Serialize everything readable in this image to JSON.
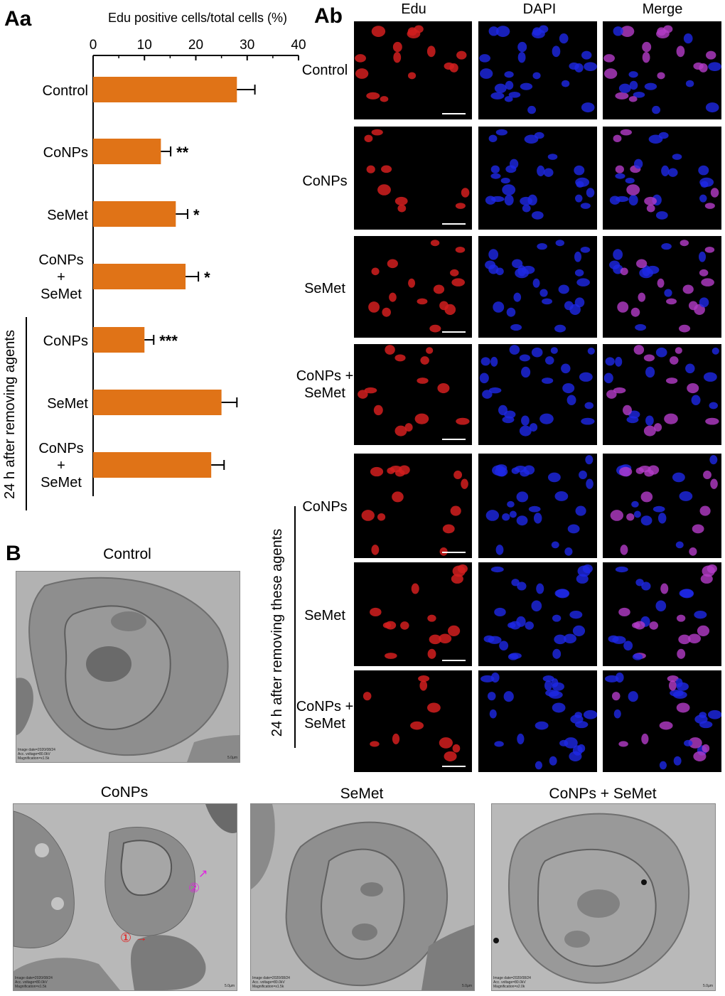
{
  "panel_labels": {
    "aa": "Aa",
    "ab": "Ab",
    "b": "B"
  },
  "chart_data": {
    "type": "bar",
    "orientation": "horizontal",
    "title": "Edu positive cells/total cells (%)",
    "xlim": [
      0,
      40
    ],
    "xticks": [
      "0",
      "10",
      "20",
      "30",
      "40"
    ],
    "categories": [
      "Control",
      "CoNPs",
      "SeMet",
      "CoNPs + SeMet",
      "CoNPs",
      "SeMet",
      "CoNPs + SeMet"
    ],
    "values": [
      28.0,
      13.2,
      16.1,
      18.0,
      10.0,
      25.0,
      23.0
    ],
    "errors": [
      3.5,
      1.9,
      2.3,
      2.5,
      1.8,
      3.0,
      2.5
    ],
    "significance": [
      "",
      "**",
      "*",
      "*",
      "***",
      "",
      ""
    ],
    "bar_color": "#e07317",
    "group_label": "24 h after removing agents"
  },
  "ab": {
    "columns": [
      "Edu",
      "DAPI",
      "Merge"
    ],
    "rows": [
      "Control",
      "CoNPs",
      "SeMet",
      "CoNPs + SeMet",
      "CoNPs",
      "SeMet",
      "CoNPs + SeMet"
    ],
    "group_label": "24 h after removing these agents",
    "colors": {
      "edu": "#d21e1e",
      "dapi": "#1e28e6",
      "merge": "#b43cc8"
    }
  },
  "b": {
    "panels": [
      {
        "title": "Control",
        "meta": [
          "Image date=2020/08/24",
          "Acc. voltage=80.0kV",
          "Magnification=x1.5k"
        ],
        "scale": "5.0µm"
      },
      {
        "title": "CoNPs",
        "meta": [
          "Image date=2020/08/24",
          "Acc. voltage=80.0kV",
          "Magnification=x1.5k"
        ],
        "scale": "5.0µm",
        "annotations": [
          "①",
          "②"
        ]
      },
      {
        "title": "SeMet",
        "meta": [
          "Image date=2020/08/24",
          "Acc. voltage=80.0kV",
          "Magnification=x1.5k"
        ],
        "scale": "5.0µm"
      },
      {
        "title": "CoNPs + SeMet",
        "meta": [
          "Image date=2020/08/24",
          "Acc. voltage=80.0kV",
          "Magnification=x2.0k"
        ],
        "scale": "5.0µm"
      }
    ],
    "annotation_colors": {
      "one": "#e41e1e",
      "two": "#e020e0"
    }
  }
}
